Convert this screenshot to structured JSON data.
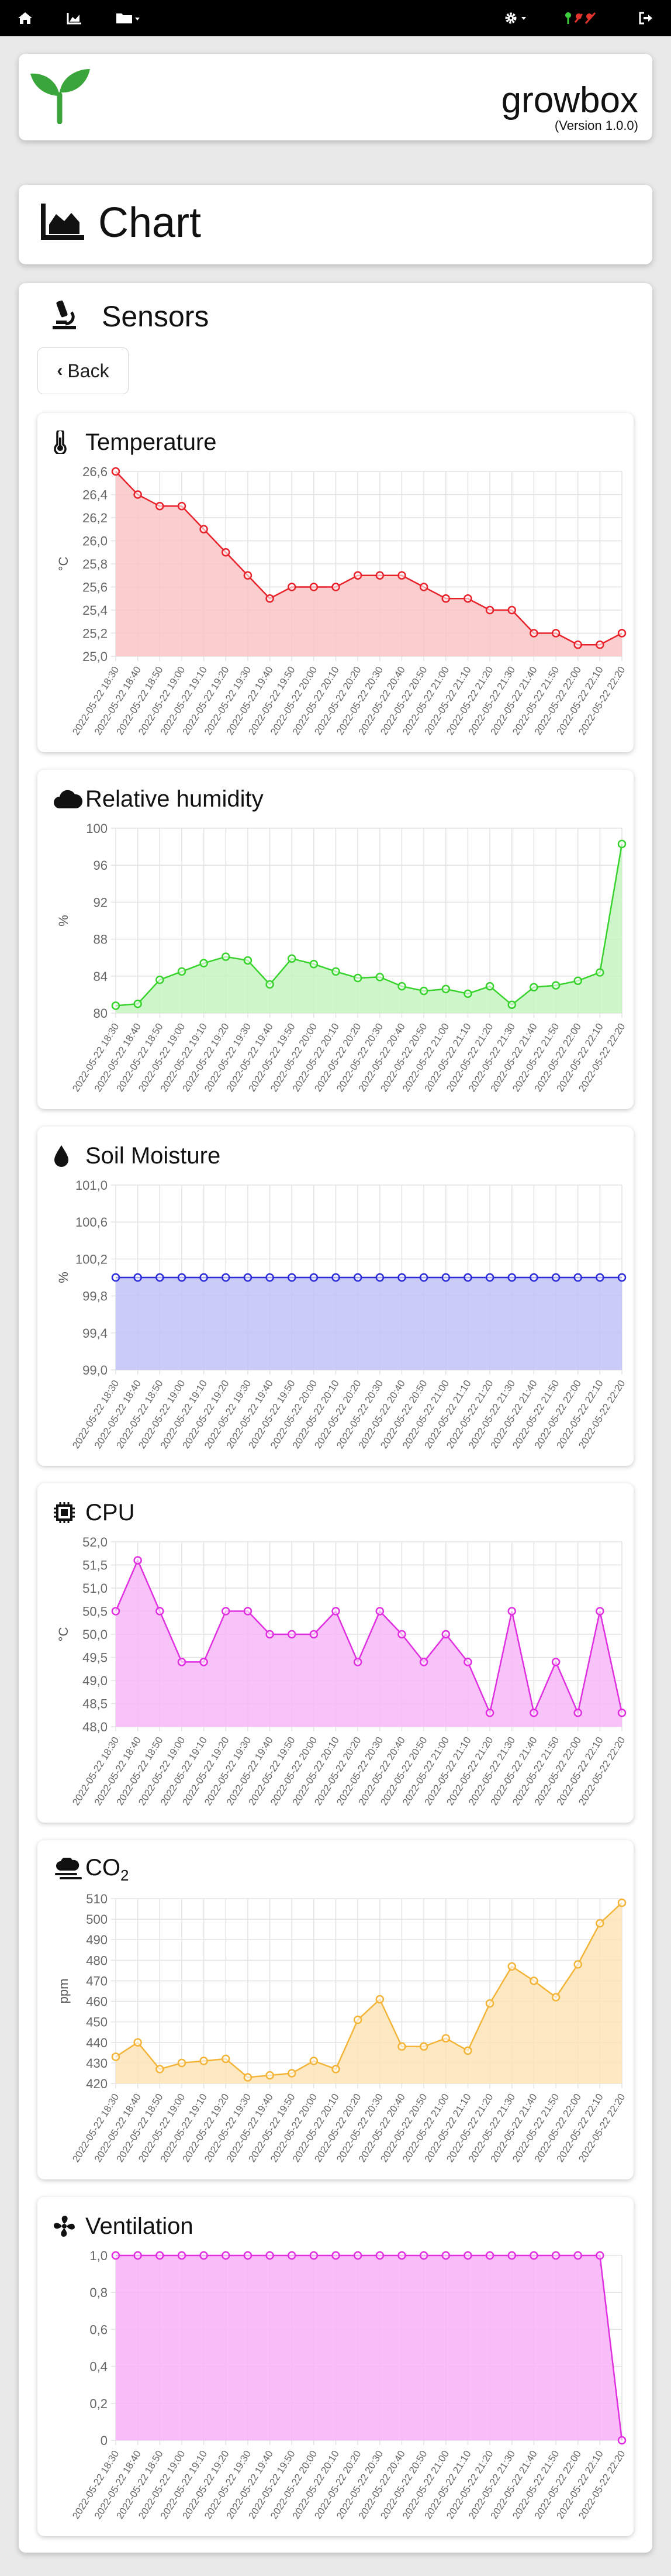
{
  "app": {
    "name": "growbox",
    "version": "(Version 1.0.0)"
  },
  "nav": {
    "left": [
      "home-icon",
      "chart-icon",
      "folder-icon"
    ],
    "right": [
      "gear-icon",
      "status-led-icon",
      "logout-icon"
    ]
  },
  "page_title": "Chart",
  "section_title": "Sensors",
  "back_label": "Back",
  "x_labels": [
    "2022-05-22 18:30",
    "2022-05-22 18:40",
    "2022-05-22 18:50",
    "2022-05-22 19:00",
    "2022-05-22 19:10",
    "2022-05-22 19:20",
    "2022-05-22 19:30",
    "2022-05-22 19:40",
    "2022-05-22 19:50",
    "2022-05-22 20:00",
    "2022-05-22 20:10",
    "2022-05-22 20:20",
    "2022-05-22 20:30",
    "2022-05-22 20:40",
    "2022-05-22 20:50",
    "2022-05-22 21:00",
    "2022-05-22 21:10",
    "2022-05-22 21:20",
    "2022-05-22 21:30",
    "2022-05-22 21:40",
    "2022-05-22 21:50",
    "2022-05-22 22:00",
    "2022-05-22 22:10",
    "2022-05-22 22:20"
  ],
  "chart_data": [
    {
      "type": "line",
      "title": "Temperature",
      "icon": "thermometer-icon",
      "ylabel": "°C",
      "ylim": [
        25.0,
        26.6
      ],
      "yticks": [
        "26,6",
        "26,4",
        "26,2",
        "26,0",
        "25,8",
        "25,6",
        "25,4",
        "25,2",
        "25,0"
      ],
      "color": "#e8212a",
      "fill": "#f9c4c6",
      "values": [
        26.6,
        26.4,
        26.3,
        26.3,
        26.1,
        25.9,
        25.7,
        25.5,
        25.6,
        25.6,
        25.6,
        25.7,
        25.7,
        25.7,
        25.6,
        25.5,
        25.5,
        25.4,
        25.4,
        25.2,
        25.2,
        25.1,
        25.1,
        25.2
      ]
    },
    {
      "type": "line",
      "title": "Relative humidity",
      "icon": "cloud-icon",
      "ylabel": "%",
      "ylim": [
        80,
        100
      ],
      "yticks": [
        "100",
        "96",
        "92",
        "88",
        "84",
        "80"
      ],
      "color": "#37d32c",
      "fill": "#c6f4c1",
      "values": [
        80.8,
        81.0,
        83.6,
        84.5,
        85.4,
        86.1,
        85.7,
        83.1,
        85.9,
        85.3,
        84.5,
        83.8,
        83.9,
        82.9,
        82.4,
        82.6,
        82.1,
        82.9,
        80.9,
        82.8,
        83.0,
        83.5,
        84.4,
        98.3
      ]
    },
    {
      "type": "line",
      "title": "Soil Moisture",
      "icon": "water-drop-icon",
      "ylabel": "%",
      "ylim": [
        99.0,
        101.0
      ],
      "yticks": [
        "101,0",
        "100,6",
        "100,2",
        "99,8",
        "99,4",
        "99,0"
      ],
      "color": "#2a2ad6",
      "fill": "#c2c2f7",
      "values": [
        100,
        100,
        100,
        100,
        100,
        100,
        100,
        100,
        100,
        100,
        100,
        100,
        100,
        100,
        100,
        100,
        100,
        100,
        100,
        100,
        100,
        100,
        100,
        100
      ]
    },
    {
      "type": "line",
      "title": "CPU",
      "icon": "cpu-chip-icon",
      "ylabel": "°C",
      "ylim": [
        48.0,
        52.0
      ],
      "yticks": [
        "52,0",
        "51,5",
        "51,0",
        "50,5",
        "50,0",
        "49,5",
        "49,0",
        "48,5",
        "48,0"
      ],
      "color": "#e02fe0",
      "fill": "#f7b9f7",
      "values": [
        50.5,
        51.6,
        50.5,
        49.4,
        49.4,
        50.5,
        50.5,
        50.0,
        50.0,
        50.0,
        50.5,
        49.4,
        50.5,
        50.0,
        49.4,
        50.0,
        49.4,
        48.3,
        50.5,
        48.3,
        49.4,
        48.3,
        50.5,
        48.3
      ]
    },
    {
      "type": "line",
      "title": "CO",
      "title_sub": "2",
      "icon": "smog-icon",
      "ylabel": "ppm",
      "ylim": [
        420,
        510
      ],
      "yticks": [
        "510",
        "500",
        "490",
        "480",
        "470",
        "460",
        "450",
        "440",
        "430",
        "420"
      ],
      "color": "#f3b438",
      "fill": "#fbe4b7",
      "values": [
        433,
        440,
        427,
        430,
        431,
        432,
        423,
        424,
        425,
        431,
        427,
        451,
        461,
        438,
        438,
        442,
        436,
        459,
        477,
        470,
        462,
        478,
        498,
        508
      ]
    },
    {
      "type": "line",
      "title": "Ventilation",
      "icon": "fan-icon",
      "ylabel": "",
      "ylim": [
        0,
        1
      ],
      "yticks": [
        "1,0",
        "0,8",
        "0,6",
        "0,4",
        "0,2",
        "0"
      ],
      "color": "#e02fe0",
      "fill": "#f8b3f8",
      "values": [
        1,
        1,
        1,
        1,
        1,
        1,
        1,
        1,
        1,
        1,
        1,
        1,
        1,
        1,
        1,
        1,
        1,
        1,
        1,
        1,
        1,
        1,
        1,
        0
      ]
    }
  ]
}
